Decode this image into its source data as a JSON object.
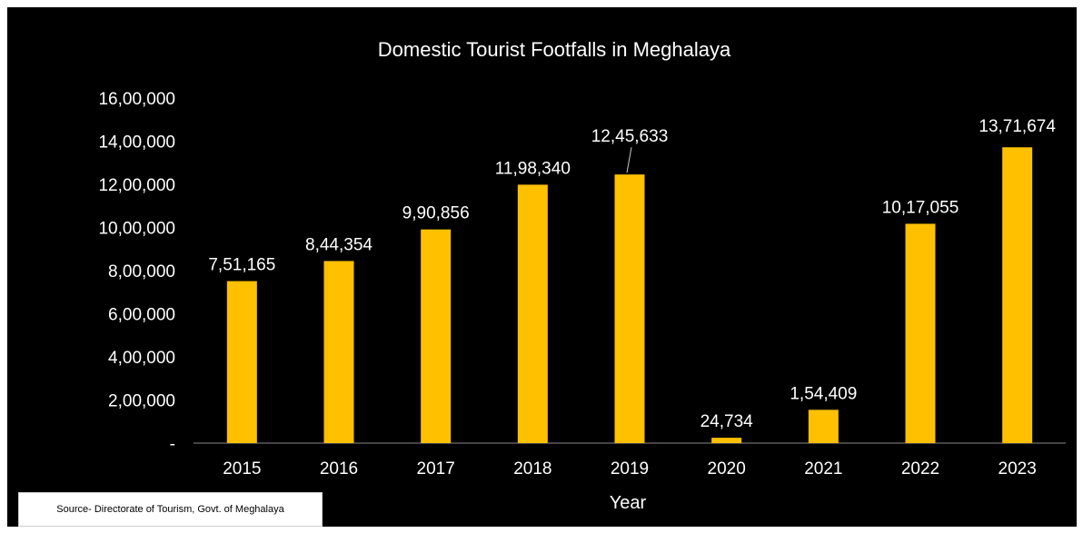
{
  "chart_data": {
    "type": "bar",
    "title": "Domestic Tourist Footfalls in Meghalaya",
    "xlabel": "Year",
    "ylabel": "",
    "categories": [
      "2015",
      "2016",
      "2017",
      "2018",
      "2019",
      "2020",
      "2021",
      "2022",
      "2023"
    ],
    "values": [
      751165,
      844354,
      990856,
      1198340,
      1245633,
      24734,
      154409,
      1017055,
      1371674
    ],
    "data_labels": [
      "7,51,165",
      "8,44,354",
      "9,90,856",
      "11,98,340",
      "12,45,633",
      "24,734",
      "1,54,409",
      "10,17,055",
      "13,71,674"
    ],
    "y_ticks": [
      0,
      200000,
      400000,
      600000,
      800000,
      1000000,
      1200000,
      1400000,
      1600000
    ],
    "y_tick_labels": [
      "-",
      "2,00,000",
      "4,00,000",
      "6,00,000",
      "8,00,000",
      "10,00,000",
      "12,00,000",
      "14,00,000",
      "16,00,000"
    ],
    "ylim": [
      0,
      1600000
    ],
    "grid": false,
    "legend": "none"
  },
  "colors": {
    "background": "#000000",
    "bar": "#FFC000",
    "text": "#FFFFFF",
    "axis": "#888888"
  },
  "source_note": "Source- Directorate of Tourism, Govt. of Meghalaya"
}
